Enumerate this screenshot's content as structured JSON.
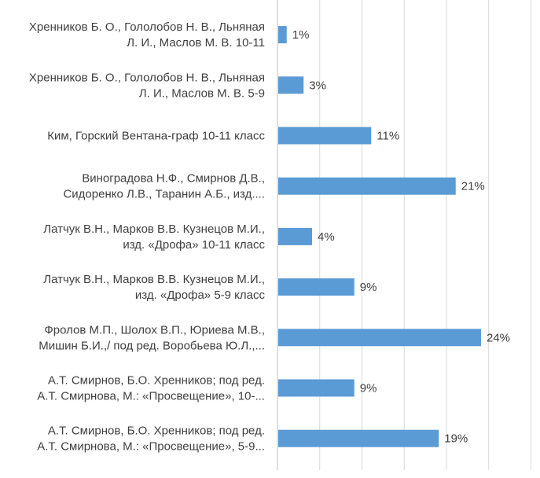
{
  "chart_data": {
    "type": "bar",
    "orientation": "horizontal",
    "categories": [
      [
        "Хренников Б. О., Гололобов Н. В., Льняная",
        "Л. И., Маслов М. В. 10-11"
      ],
      [
        "Хренников Б. О., Гололобов Н. В., Льняная",
        "Л. И., Маслов М. В. 5-9"
      ],
      [
        "Ким, Горский Вентана-граф 10-11  класс"
      ],
      [
        "Виноградова Н.Ф., Смирнов Д.В.,",
        "Сидоренко Л.В., Таранин А.Б., изд...."
      ],
      [
        "Латчук В.Н., Марков В.В. Кузнецов М.И.,",
        "изд. «Дрофа» 10-11 класс"
      ],
      [
        "Латчук В.Н., Марков В.В. Кузнецов М.И.,",
        "изд. «Дрофа» 5-9 класс"
      ],
      [
        "Фролов М.П., Шолох В.П., Юриева М.В.,",
        "Мишин Б.И.,/ под ред. Воробьева Ю.Л.,..."
      ],
      [
        "А.Т. Смирнов, Б.О. Хренников; под ред.",
        "А.Т. Смирнова, М.: «Просвещение», 10-..."
      ],
      [
        "А.Т. Смирнов, Б.О. Хренников; под ред.",
        "А.Т. Смирнова, М.:  «Просвещение»,  5-9..."
      ]
    ],
    "values": [
      1,
      3,
      11,
      21,
      4,
      9,
      24,
      9,
      19
    ],
    "value_labels": [
      "1%",
      "3%",
      "11%",
      "21%",
      "4%",
      "9%",
      "24%",
      "9%",
      "19%"
    ],
    "xlim": [
      0,
      30
    ],
    "grid": true,
    "bar_color": "#5b9bd5",
    "grid_color": "#d9d9d9"
  }
}
